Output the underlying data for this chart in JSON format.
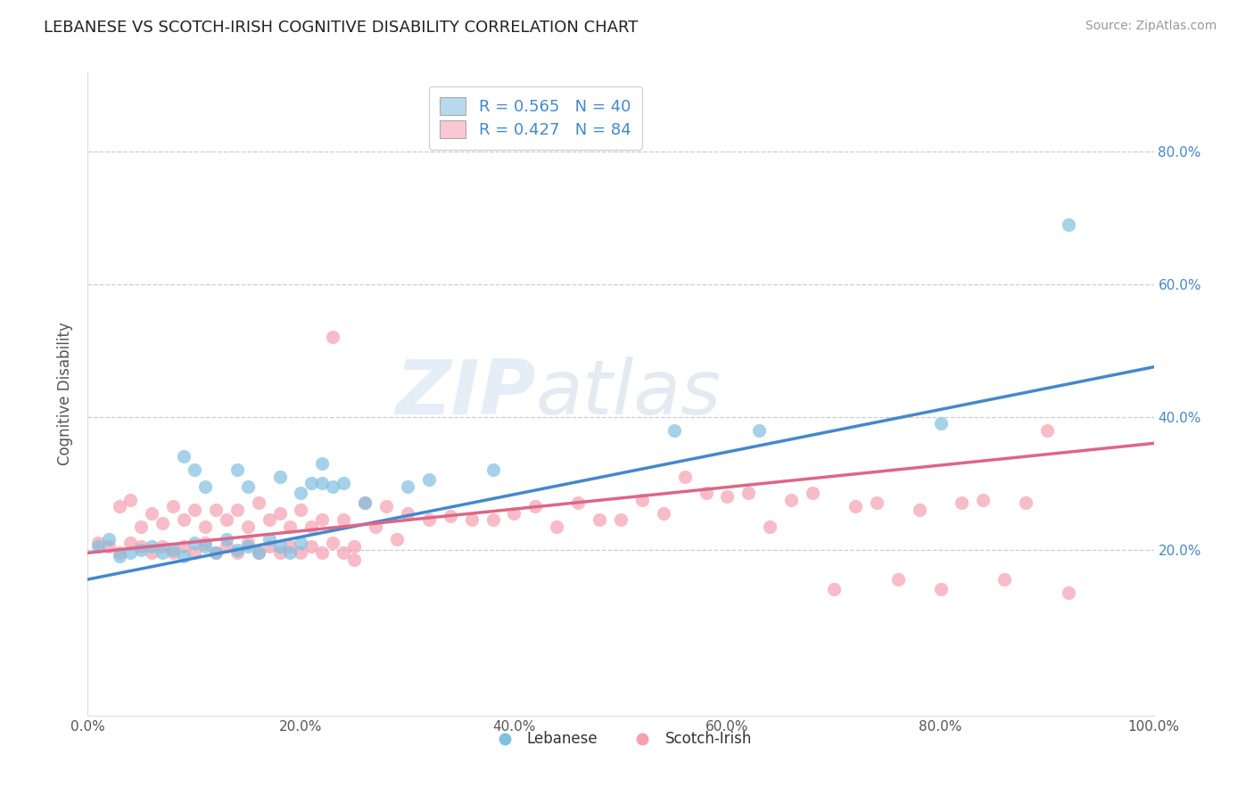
{
  "title": "LEBANESE VS SCOTCH-IRISH COGNITIVE DISABILITY CORRELATION CHART",
  "source": "Source: ZipAtlas.com",
  "ylabel": "Cognitive Disability",
  "xlim": [
    0.0,
    1.0
  ],
  "ylim": [
    -0.05,
    0.92
  ],
  "xtick_labels": [
    "0.0%",
    "20.0%",
    "40.0%",
    "60.0%",
    "80.0%",
    "100.0%"
  ],
  "xtick_vals": [
    0.0,
    0.2,
    0.4,
    0.6,
    0.8,
    1.0
  ],
  "ytick_labels": [
    "20.0%",
    "40.0%",
    "60.0%",
    "80.0%"
  ],
  "ytick_vals": [
    0.2,
    0.4,
    0.6,
    0.8
  ],
  "legend_R_lebanese": "R = 0.565",
  "legend_N_lebanese": "N = 40",
  "legend_R_scotch": "R = 0.427",
  "legend_N_scotch": "N = 84",
  "lebanese_color": "#7fbfdf",
  "scotch_color": "#f4a0b0",
  "lebanese_fill": "#b8d8ee",
  "scotch_fill": "#f9c8d4",
  "line_lebanese_color": "#4488cc",
  "line_scotch_color": "#dd6688",
  "background_color": "#ffffff",
  "watermark": "ZIPatlas",
  "leb_line_x0": 0.0,
  "leb_line_y0": 0.155,
  "leb_line_x1": 1.0,
  "leb_line_y1": 0.475,
  "sco_line_x0": 0.0,
  "sco_line_y0": 0.195,
  "sco_line_x1": 1.0,
  "sco_line_y1": 0.36,
  "lebanese_x": [
    0.01,
    0.02,
    0.03,
    0.04,
    0.05,
    0.06,
    0.07,
    0.08,
    0.09,
    0.1,
    0.11,
    0.12,
    0.13,
    0.14,
    0.15,
    0.16,
    0.17,
    0.18,
    0.19,
    0.2,
    0.21,
    0.22,
    0.23,
    0.24,
    0.09,
    0.1,
    0.11,
    0.14,
    0.15,
    0.18,
    0.2,
    0.22,
    0.26,
    0.3,
    0.32,
    0.38,
    0.55,
    0.63,
    0.8,
    0.92
  ],
  "lebanese_y": [
    0.205,
    0.215,
    0.19,
    0.195,
    0.2,
    0.205,
    0.195,
    0.2,
    0.19,
    0.21,
    0.205,
    0.195,
    0.215,
    0.2,
    0.205,
    0.195,
    0.215,
    0.205,
    0.195,
    0.21,
    0.3,
    0.33,
    0.295,
    0.3,
    0.34,
    0.32,
    0.295,
    0.32,
    0.295,
    0.31,
    0.285,
    0.3,
    0.27,
    0.295,
    0.305,
    0.32,
    0.38,
    0.38,
    0.39,
    0.69
  ],
  "scotch_x": [
    0.01,
    0.02,
    0.03,
    0.04,
    0.05,
    0.06,
    0.07,
    0.08,
    0.09,
    0.1,
    0.11,
    0.12,
    0.13,
    0.14,
    0.15,
    0.16,
    0.17,
    0.18,
    0.19,
    0.2,
    0.21,
    0.22,
    0.23,
    0.24,
    0.25,
    0.03,
    0.04,
    0.05,
    0.06,
    0.07,
    0.08,
    0.09,
    0.1,
    0.11,
    0.12,
    0.13,
    0.14,
    0.15,
    0.16,
    0.17,
    0.18,
    0.19,
    0.2,
    0.21,
    0.22,
    0.23,
    0.24,
    0.25,
    0.26,
    0.27,
    0.28,
    0.29,
    0.3,
    0.32,
    0.34,
    0.36,
    0.38,
    0.4,
    0.42,
    0.44,
    0.46,
    0.48,
    0.5,
    0.52,
    0.54,
    0.56,
    0.58,
    0.6,
    0.62,
    0.64,
    0.66,
    0.68,
    0.7,
    0.72,
    0.74,
    0.76,
    0.78,
    0.8,
    0.82,
    0.84,
    0.86,
    0.88,
    0.9,
    0.92
  ],
  "scotch_y": [
    0.21,
    0.205,
    0.195,
    0.21,
    0.205,
    0.195,
    0.205,
    0.195,
    0.205,
    0.195,
    0.21,
    0.195,
    0.205,
    0.195,
    0.21,
    0.195,
    0.205,
    0.195,
    0.205,
    0.195,
    0.205,
    0.195,
    0.21,
    0.195,
    0.205,
    0.265,
    0.275,
    0.235,
    0.255,
    0.24,
    0.265,
    0.245,
    0.26,
    0.235,
    0.26,
    0.245,
    0.26,
    0.235,
    0.27,
    0.245,
    0.255,
    0.235,
    0.26,
    0.235,
    0.245,
    0.52,
    0.245,
    0.185,
    0.27,
    0.235,
    0.265,
    0.215,
    0.255,
    0.245,
    0.25,
    0.245,
    0.245,
    0.255,
    0.265,
    0.235,
    0.27,
    0.245,
    0.245,
    0.275,
    0.255,
    0.31,
    0.285,
    0.28,
    0.285,
    0.235,
    0.275,
    0.285,
    0.14,
    0.265,
    0.27,
    0.155,
    0.26,
    0.14,
    0.27,
    0.275,
    0.155,
    0.27,
    0.38,
    0.135
  ]
}
